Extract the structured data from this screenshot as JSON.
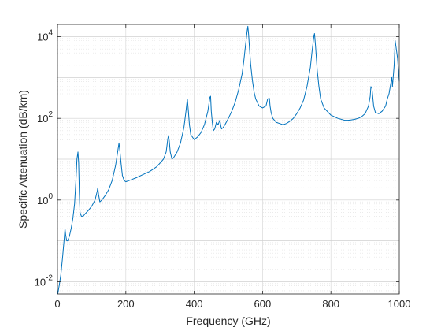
{
  "chart_data": {
    "type": "line",
    "title": "",
    "xlabel": "Frequency (GHz)",
    "ylabel": "Specific Attenuation (dB/km)",
    "xlim": [
      0,
      1000
    ],
    "ylim": [
      0.005,
      20000
    ],
    "yscale": "log",
    "grid": true,
    "minor_grid": true,
    "x_ticks": [
      0,
      200,
      400,
      600,
      800,
      1000
    ],
    "x_tick_labels": [
      "0",
      "200",
      "400",
      "600",
      "800",
      "1000"
    ],
    "y_ticks": [
      0.01,
      1,
      100,
      10000
    ],
    "y_tick_labels": [
      {
        "base": "10",
        "exp": "-2"
      },
      {
        "base": "10",
        "exp": "0"
      },
      {
        "base": "10",
        "exp": "2"
      },
      {
        "base": "10",
        "exp": "4"
      }
    ],
    "line_color": "#0072bd",
    "series": [
      {
        "x": [
          1,
          5,
          10,
          15,
          20,
          22,
          24,
          27,
          30,
          35,
          40,
          45,
          50,
          54,
          57,
          60,
          62,
          64,
          66,
          70,
          75,
          80,
          90,
          100,
          110,
          116,
          118,
          120,
          124,
          130,
          140,
          150,
          160,
          170,
          175,
          180,
          183,
          186,
          190,
          195,
          200,
          210,
          230,
          250,
          270,
          290,
          300,
          310,
          318,
          323,
          325,
          327,
          330,
          335,
          340,
          350,
          360,
          370,
          376,
          380,
          383,
          386,
          390,
          400,
          410,
          420,
          430,
          440,
          446,
          448,
          450,
          453,
          456,
          460,
          465,
          470,
          475,
          478,
          480,
          485,
          490,
          500,
          510,
          520,
          530,
          540,
          545,
          550,
          555,
          557,
          559,
          562,
          565,
          570,
          575,
          580,
          590,
          600,
          610,
          615,
          620,
          622,
          625,
          630,
          640,
          650,
          660,
          670,
          680,
          690,
          700,
          710,
          720,
          730,
          740,
          745,
          750,
          752,
          755,
          760,
          765,
          770,
          780,
          800,
          820,
          840,
          850,
          860,
          870,
          880,
          890,
          900,
          910,
          915,
          917,
          920,
          925,
          930,
          940,
          950,
          960,
          965,
          970,
          975,
          978,
          980,
          985,
          988,
          990,
          995,
          1000
        ],
        "y": [
          0.005,
          0.008,
          0.015,
          0.04,
          0.12,
          0.2,
          0.14,
          0.1,
          0.1,
          0.13,
          0.2,
          0.35,
          0.8,
          3,
          10,
          15,
          8,
          1.5,
          0.5,
          0.4,
          0.4,
          0.45,
          0.55,
          0.7,
          1.0,
          1.6,
          2.0,
          1.4,
          0.9,
          1.0,
          1.3,
          1.8,
          3,
          7,
          13,
          25,
          15,
          8,
          4,
          3,
          2.8,
          3,
          3.5,
          4.2,
          5,
          6.5,
          8,
          10,
          15,
          32,
          38,
          28,
          15,
          10,
          11,
          15,
          25,
          60,
          150,
          300,
          150,
          70,
          40,
          30,
          35,
          45,
          70,
          150,
          330,
          350,
          150,
          80,
          50,
          55,
          80,
          70,
          90,
          65,
          55,
          60,
          70,
          100,
          150,
          250,
          500,
          1200,
          2500,
          6000,
          14000,
          18000,
          12000,
          5000,
          2200,
          900,
          450,
          300,
          200,
          180,
          200,
          300,
          310,
          200,
          140,
          100,
          80,
          75,
          70,
          75,
          85,
          100,
          130,
          180,
          280,
          600,
          1800,
          4500,
          10000,
          12000,
          6000,
          1500,
          600,
          300,
          180,
          120,
          100,
          90,
          90,
          92,
          95,
          100,
          110,
          130,
          200,
          350,
          600,
          550,
          200,
          140,
          130,
          150,
          200,
          300,
          400,
          700,
          1000,
          600,
          2000,
          8000,
          6000,
          3000,
          800
        ]
      }
    ]
  }
}
